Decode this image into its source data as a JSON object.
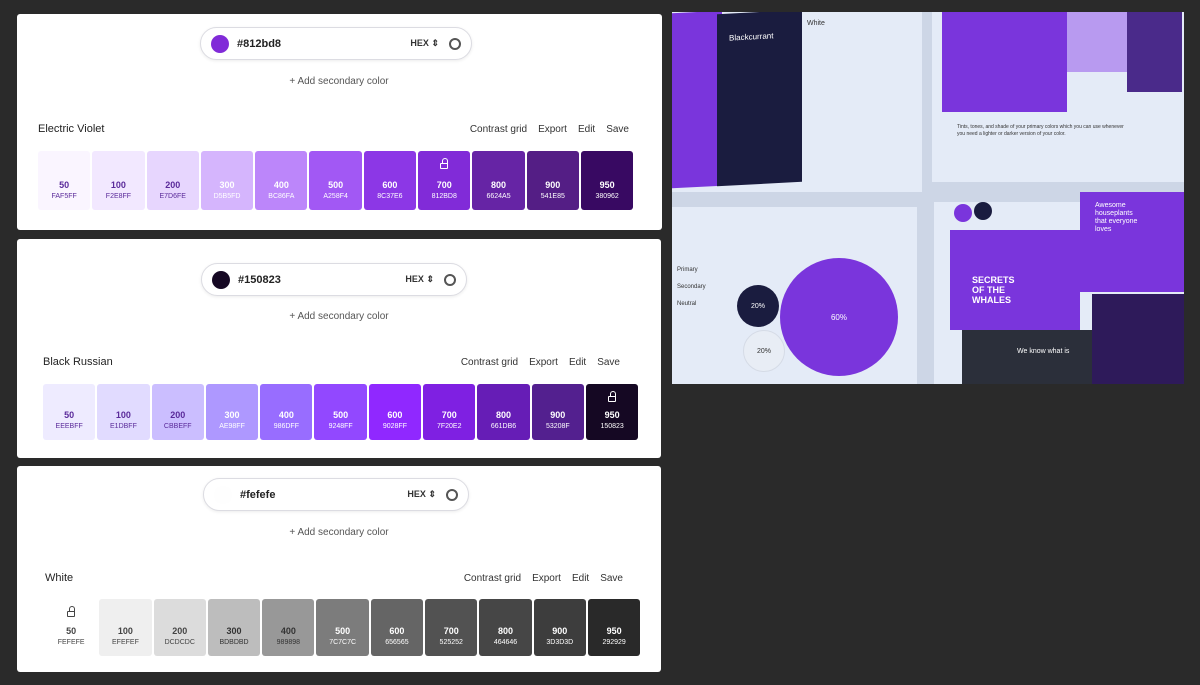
{
  "palettes": [
    {
      "input": "#812bd8",
      "dot": "#812bd8",
      "format": "HEX",
      "add_label": "+ Add secondary color",
      "name": "Electric Violet",
      "actions": [
        "Contrast grid",
        "Export",
        "Edit",
        "Save"
      ],
      "locked": "700",
      "swatches": [
        [
          "50",
          "FAF5FF"
        ],
        [
          "100",
          "F2E8FF"
        ],
        [
          "200",
          "E7D6FE"
        ],
        [
          "300",
          "D5B5FD"
        ],
        [
          "400",
          "BC86FA"
        ],
        [
          "500",
          "A258F4"
        ],
        [
          "600",
          "8C37E6"
        ],
        [
          "700",
          "812BD8"
        ],
        [
          "800",
          "6624A5"
        ],
        [
          "900",
          "541E85"
        ],
        [
          "950",
          "380962"
        ]
      ]
    },
    {
      "input": "#150823",
      "dot": "#150823",
      "format": "HEX",
      "add_label": "+ Add secondary color",
      "name": "Black Russian",
      "actions": [
        "Contrast grid",
        "Export",
        "Edit",
        "Save"
      ],
      "locked": "950",
      "swatches": [
        [
          "50",
          "EEEBFF"
        ],
        [
          "100",
          "E1DBFF"
        ],
        [
          "200",
          "CBBEFF"
        ],
        [
          "300",
          "AE98FF"
        ],
        [
          "400",
          "986DFF"
        ],
        [
          "500",
          "9248FF"
        ],
        [
          "600",
          "9028FF"
        ],
        [
          "700",
          "7F20E2"
        ],
        [
          "800",
          "661DB6"
        ],
        [
          "900",
          "53208F"
        ],
        [
          "950",
          "150823"
        ]
      ]
    },
    {
      "input": "#fefefe",
      "dot": "#fefefe",
      "format": "HEX",
      "add_label": "+ Add secondary color",
      "name": "White",
      "actions": [
        "Contrast grid",
        "Export",
        "Edit",
        "Save"
      ],
      "locked": "50",
      "swatches": [
        [
          "50",
          "FEFEFE"
        ],
        [
          "100",
          "EFEFEF"
        ],
        [
          "200",
          "DCDCDC"
        ],
        [
          "300",
          "BDBDBD"
        ],
        [
          "400",
          "989898"
        ],
        [
          "500",
          "7C7C7C"
        ],
        [
          "600",
          "656565"
        ],
        [
          "700",
          "525252"
        ],
        [
          "800",
          "464646"
        ],
        [
          "900",
          "3D3D3D"
        ],
        [
          "950",
          "292929"
        ]
      ]
    }
  ],
  "preview": {
    "card_secondary": "Blackcurrant",
    "card_white": "White",
    "tints_text": "Tints, tones, and shade of your primary colors which you can use whenever you need a lighter or darker version of your color.",
    "legend": [
      {
        "label": "Primary"
      },
      {
        "label": "Secondary"
      },
      {
        "label": "Neutral"
      }
    ],
    "pcts": [
      "60%",
      "20%",
      "20%"
    ],
    "hero": "SECRETS OF THE WHALES",
    "plants": "Awesome houseplants that everyone loves",
    "dark_text": "We know what is"
  }
}
